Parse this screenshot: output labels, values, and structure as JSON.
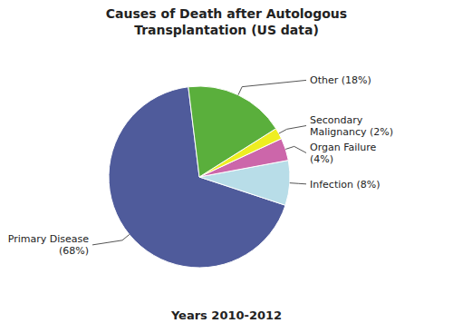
{
  "chart_data": {
    "type": "pie",
    "title": "Causes of Death after Autologous\nTransplantation (US data)",
    "subtitle": "Years 2010-2012",
    "categories": [
      "Primary Disease\n(68%)",
      "Infection (8%)",
      "Organ Failure\n(4%)",
      "Secondary\nMalignancy (2%)",
      "Other (18%)"
    ],
    "values": [
      68,
      8,
      4,
      2,
      18
    ],
    "colors": [
      "#4F5B9B",
      "#B8DDE8",
      "#CC66AA",
      "#EEEE22",
      "#5AAF3C"
    ]
  }
}
